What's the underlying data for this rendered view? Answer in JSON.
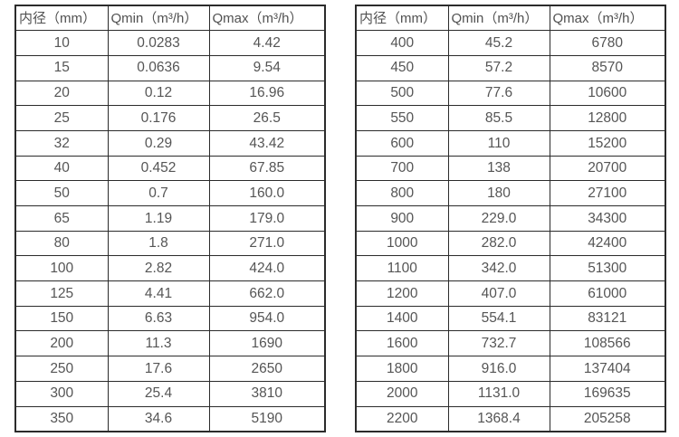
{
  "colors": {
    "border": "#2b2b2b",
    "text": "#555555",
    "background": "#ffffff"
  },
  "tables": [
    {
      "name": "flow-spec-table-small-diameters",
      "headers": [
        "内径（mm）",
        "Qmin（m³/h）",
        "Qmax（m³/h）"
      ],
      "rows": [
        [
          "10",
          "0.0283",
          "4.42"
        ],
        [
          "15",
          "0.0636",
          "9.54"
        ],
        [
          "20",
          "0.12",
          "16.96"
        ],
        [
          "25",
          "0.176",
          "26.5"
        ],
        [
          "32",
          "0.29",
          "43.42"
        ],
        [
          "40",
          "0.452",
          "67.85"
        ],
        [
          "50",
          "0.7",
          "160.0"
        ],
        [
          "65",
          "1.19",
          "179.0"
        ],
        [
          "80",
          "1.8",
          "271.0"
        ],
        [
          "100",
          "2.82",
          "424.0"
        ],
        [
          "125",
          "4.41",
          "662.0"
        ],
        [
          "150",
          "6.63",
          "954.0"
        ],
        [
          "200",
          "11.3",
          "1690"
        ],
        [
          "250",
          "17.6",
          "2650"
        ],
        [
          "300",
          "25.4",
          "3810"
        ],
        [
          "350",
          "34.6",
          "5190"
        ]
      ]
    },
    {
      "name": "flow-spec-table-large-diameters",
      "headers": [
        "内径（mm）",
        "Qmin（m³/h）",
        "Qmax（m³/h）"
      ],
      "rows": [
        [
          "400",
          "45.2",
          "6780"
        ],
        [
          "450",
          "57.2",
          "8570"
        ],
        [
          "500",
          "77.6",
          "10600"
        ],
        [
          "550",
          "85.5",
          "12800"
        ],
        [
          "600",
          "110",
          "15200"
        ],
        [
          "700",
          "138",
          "20700"
        ],
        [
          "800",
          "180",
          "27100"
        ],
        [
          "900",
          "229.0",
          "34300"
        ],
        [
          "1000",
          "282.0",
          "42400"
        ],
        [
          "1100",
          "342.0",
          "51300"
        ],
        [
          "1200",
          "407.0",
          "61000"
        ],
        [
          "1400",
          "554.1",
          "83121"
        ],
        [
          "1600",
          "732.7",
          "108566"
        ],
        [
          "1800",
          "916.0",
          "137404"
        ],
        [
          "2000",
          "1131.0",
          "169635"
        ],
        [
          "2200",
          "1368.4",
          "205258"
        ]
      ]
    }
  ]
}
